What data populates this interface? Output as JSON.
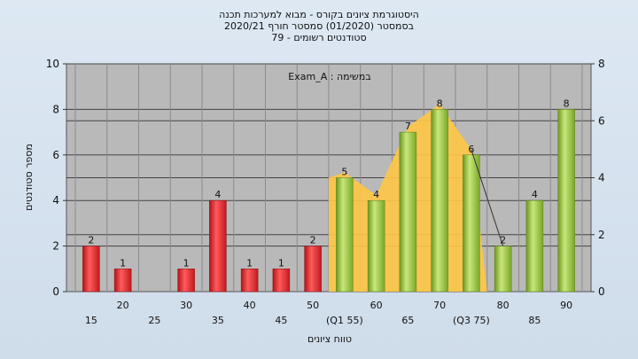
{
  "title_lines": [
    "היסטוגרמת ציונים בקורס - מבוא למערכות תכנה",
    "בסמסטר  (01/2020)  סמסטר חורף 2020/21",
    "סטודנטים רשומים - 79"
  ],
  "chart_data": {
    "type": "bar",
    "title": "היסטוגרמת ציונים בקורס - מבוא למערכות תכנה",
    "subtitle": "בסמסטר  (01/2020)  סמסטר חורף 2020/21",
    "caption": "סטודנטים רשומים - 79",
    "annotation": "Exam_A : במשימה",
    "xlabel": "טווח ציונים",
    "ylabel": "מספר סטודנטים",
    "ylim": [
      0,
      10
    ],
    "yticks": [
      0,
      2,
      4,
      6,
      8,
      10
    ],
    "y2lim": [
      0,
      8
    ],
    "y2ticks": [
      0,
      2,
      4,
      6,
      8
    ],
    "grid": true,
    "categories": [
      "15",
      "20",
      "25",
      "30",
      "35",
      "40",
      "45",
      "50",
      "55",
      "60",
      "65",
      "70",
      "75",
      "80",
      "85",
      "90"
    ],
    "category_labels": [
      "15",
      "20",
      "25",
      "30",
      "35",
      "40",
      "45",
      "50",
      "(Q1 55)",
      "60",
      "65",
      "70",
      "(Q3 75)",
      "80",
      "85",
      "90"
    ],
    "values": [
      2,
      1,
      0,
      1,
      4,
      1,
      1,
      2,
      5,
      4,
      7,
      8,
      6,
      2,
      4,
      8
    ],
    "value_labels": [
      "2",
      "1",
      "",
      "1",
      "4",
      "1",
      "1",
      "2",
      "5",
      "4",
      "7",
      "8",
      "6",
      "2",
      "4",
      "8"
    ],
    "colors": {
      "below": "#e8282c",
      "above": "#9cc83a",
      "band": "#ffc845",
      "plot_bg": "#b9b9b9"
    }
  }
}
